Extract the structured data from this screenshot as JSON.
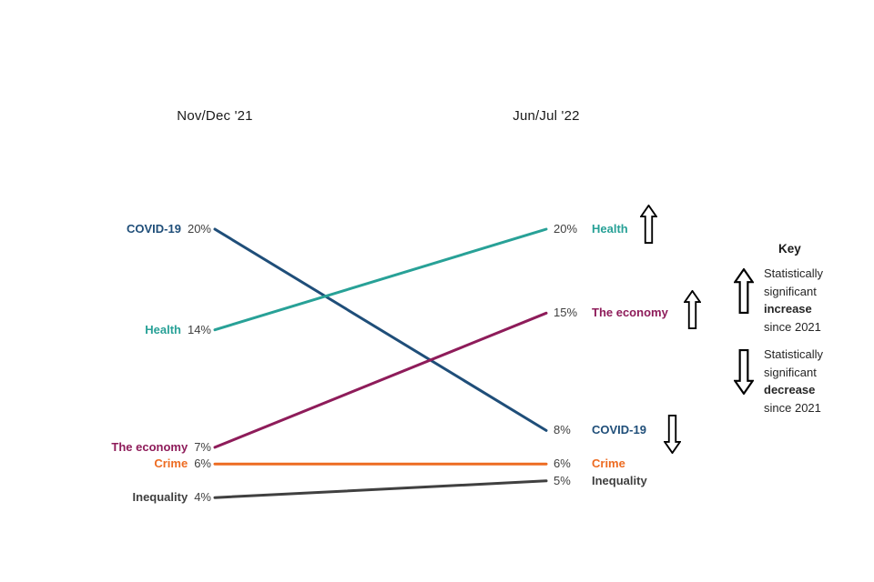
{
  "chart_data": {
    "type": "line",
    "subtype": "slope",
    "unit": "%",
    "categories": [
      "Nov/Dec '21",
      "Jun/Jul '22"
    ],
    "series": [
      {
        "name": "COVID-19",
        "values": [
          20,
          8
        ],
        "left_label": "20%",
        "right_label": "8%",
        "color": "#1f4e79",
        "significant_change": "decrease"
      },
      {
        "name": "Health",
        "values": [
          14,
          20
        ],
        "left_label": "14%",
        "right_label": "20%",
        "color": "#28a197",
        "significant_change": "increase"
      },
      {
        "name": "The economy",
        "values": [
          7,
          15
        ],
        "left_label": "7%",
        "right_label": "15%",
        "color": "#8e1c5a",
        "significant_change": "increase"
      },
      {
        "name": "Crime",
        "values": [
          6,
          6
        ],
        "left_label": "6%",
        "right_label": "6%",
        "color": "#ed6b21",
        "significant_change": null
      },
      {
        "name": "Inequality",
        "values": [
          4,
          5
        ],
        "left_label": "4%",
        "right_label": "5%",
        "color": "#404040",
        "significant_change": null
      }
    ],
    "ylim": [
      4,
      20
    ],
    "grid": false,
    "legend_position": "none"
  },
  "key": {
    "title": "Key",
    "increase": {
      "line1": "Statistically",
      "line2": "significant",
      "emphasis": "increase",
      "line4": "since 2021"
    },
    "decrease": {
      "line1": "Statistically",
      "line2": "significant",
      "emphasis": "decrease",
      "line4": "since 2021"
    }
  }
}
